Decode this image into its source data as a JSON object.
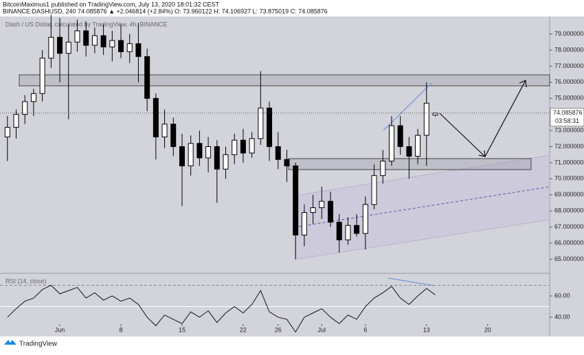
{
  "header": {
    "published": "BitcoinMaximus1 published on TradingView.com, July 13, 2020 18:01:32 CEST",
    "symbol_line": "BINANCE:DASHUSD, 240  74.085876 ▲ +2.046814 (+2.84%) O: 73.960122 H: 74.106927 L: 73.875019 C: 74.085876",
    "footer": "TradingView"
  },
  "chart_data": [
    {
      "type": "candlestick",
      "title": "Dash / US Dollar, calculated by TradingView, 4h, BINANCE",
      "x": [
        -6,
        -5,
        -4,
        -3,
        -2,
        -1,
        0,
        1,
        2,
        3,
        4,
        5,
        6,
        7,
        8,
        9,
        10,
        11,
        12,
        13,
        14,
        15,
        16,
        17,
        18,
        19,
        20,
        21,
        22,
        23,
        24,
        25,
        26,
        27,
        28,
        29,
        30,
        31,
        32,
        33,
        34,
        35,
        36,
        37,
        38,
        39,
        40,
        41,
        42,
        43
      ],
      "open": [
        72.6,
        73.2,
        74.0,
        74.8,
        75.3,
        77.5,
        78.8,
        77.8,
        78.5,
        79.2,
        78.3,
        78.9,
        78.2,
        78.6,
        77.9,
        78.4,
        77.6,
        75.0,
        72.6,
        73.4,
        72.0,
        70.8,
        72.2,
        71.3,
        72.0,
        70.6,
        71.5,
        72.4,
        71.6,
        72.5,
        74.4,
        72.0,
        71.2,
        70.8,
        66.5,
        67.9,
        68.2,
        68.6,
        67.3,
        66.2,
        67.1,
        66.6,
        68.4,
        70.2,
        71.1,
        73.3,
        72.0,
        71.4,
        72.7,
        73.960122
      ],
      "high": [
        73.9,
        74.3,
        75.2,
        75.6,
        78.0,
        80.2,
        80.0,
        79.6,
        79.9,
        79.8,
        79.4,
        79.6,
        79.2,
        79.6,
        79.0,
        79.7,
        78.1,
        75.3,
        74.3,
        73.8,
        72.8,
        72.7,
        73.0,
        72.6,
        72.4,
        72.0,
        72.8,
        73.1,
        72.9,
        76.7,
        74.8,
        72.9,
        71.8,
        71.0,
        68.4,
        69.0,
        69.5,
        69.2,
        67.8,
        67.6,
        67.8,
        68.9,
        70.9,
        71.8,
        73.9,
        73.9,
        72.6,
        73.1,
        76.0,
        74.106927
      ],
      "low": [
        71.1,
        72.5,
        73.4,
        73.9,
        74.8,
        76.9,
        76.0,
        73.7,
        77.9,
        77.6,
        77.8,
        77.7,
        77.3,
        77.5,
        77.2,
        76.0,
        74.2,
        71.2,
        71.9,
        71.4,
        68.3,
        70.2,
        70.8,
        70.4,
        68.5,
        70.0,
        70.9,
        71.0,
        71.3,
        72.1,
        71.1,
        70.6,
        69.8,
        65.0,
        65.8,
        67.2,
        67.5,
        67.0,
        65.4,
        65.9,
        66.4,
        65.6,
        68.1,
        69.7,
        70.8,
        71.5,
        70.0,
        70.9,
        70.8,
        73.875019
      ],
      "close": [
        73.2,
        74.0,
        74.8,
        75.3,
        77.5,
        78.8,
        77.8,
        78.5,
        79.2,
        78.3,
        78.9,
        78.2,
        78.6,
        77.9,
        78.4,
        77.6,
        75.0,
        72.6,
        73.4,
        72.0,
        70.8,
        72.2,
        71.3,
        72.0,
        70.6,
        71.5,
        72.4,
        71.6,
        72.5,
        74.4,
        72.0,
        71.2,
        70.8,
        66.5,
        67.9,
        68.2,
        68.6,
        67.3,
        66.2,
        67.1,
        66.6,
        68.4,
        70.2,
        71.1,
        73.3,
        72.0,
        71.4,
        72.7,
        74.7,
        74.085876
      ],
      "up_color": "#ffffff",
      "down_color": "#000000",
      "wick_color": "#000000",
      "countdown": "03:58:31",
      "xlim": [
        -6.85,
        56.1
      ],
      "xticks": [
        {
          "value": 0,
          "label": "Jun"
        },
        {
          "value": 7,
          "label": "8"
        },
        {
          "value": 14,
          "label": "15"
        },
        {
          "value": 21,
          "label": "22"
        },
        {
          "value": 25,
          "label": "26"
        },
        {
          "value": 30,
          "label": "Jul"
        },
        {
          "value": 35,
          "label": "6"
        },
        {
          "value": 42,
          "label": "13"
        },
        {
          "value": 49,
          "label": "20"
        }
      ],
      "ylim": [
        64.25,
        80.05
      ],
      "yticks": [
        {
          "value": 65,
          "label": "65.000000"
        },
        {
          "value": 66,
          "label": "66.000000"
        },
        {
          "value": 67,
          "label": "67.000000"
        },
        {
          "value": 68,
          "label": "68.000000"
        },
        {
          "value": 69,
          "label": "69.000000"
        },
        {
          "value": 70,
          "label": "70.000000"
        },
        {
          "value": 71,
          "label": "71.000000"
        },
        {
          "value": 72,
          "label": "72.000000"
        },
        {
          "value": 73,
          "label": "73.000000"
        },
        {
          "value": 75,
          "label": "75.000000"
        },
        {
          "value": 76,
          "label": "76.000000"
        },
        {
          "value": 77,
          "label": "77.000000"
        },
        {
          "value": 78,
          "label": "78.000000"
        },
        {
          "value": 79,
          "label": "79.000000"
        }
      ]
    },
    {
      "type": "line",
      "title": "RSI (14, close)",
      "color": "#111111",
      "x": [
        -6,
        -5,
        -4,
        -3,
        -2,
        -1,
        0,
        1,
        2,
        3,
        4,
        5,
        6,
        7,
        8,
        9,
        10,
        11,
        12,
        13,
        14,
        15,
        16,
        17,
        18,
        19,
        20,
        21,
        22,
        23,
        24,
        25,
        26,
        27,
        28,
        29,
        30,
        31,
        32,
        33,
        34,
        35,
        36,
        37,
        38,
        39,
        40,
        41,
        42,
        43
      ],
      "values": [
        40,
        48,
        55,
        58,
        66,
        70,
        62,
        65,
        68,
        58,
        63,
        56,
        60,
        55,
        58,
        52,
        40,
        32,
        42,
        38,
        34,
        45,
        40,
        46,
        35,
        44,
        50,
        44,
        52,
        65,
        45,
        40,
        38,
        26,
        40,
        44,
        48,
        40,
        34,
        42,
        38,
        50,
        58,
        63,
        69,
        58,
        52,
        60,
        67,
        61
      ],
      "levels": [
        70,
        50
      ],
      "xlim": [
        -6.85,
        56.1
      ],
      "ylim": [
        34.8,
        80
      ],
      "yticks": [
        {
          "value": 40,
          "label": "40.00"
        },
        {
          "value": 60,
          "label": "60.00"
        }
      ]
    }
  ]
}
